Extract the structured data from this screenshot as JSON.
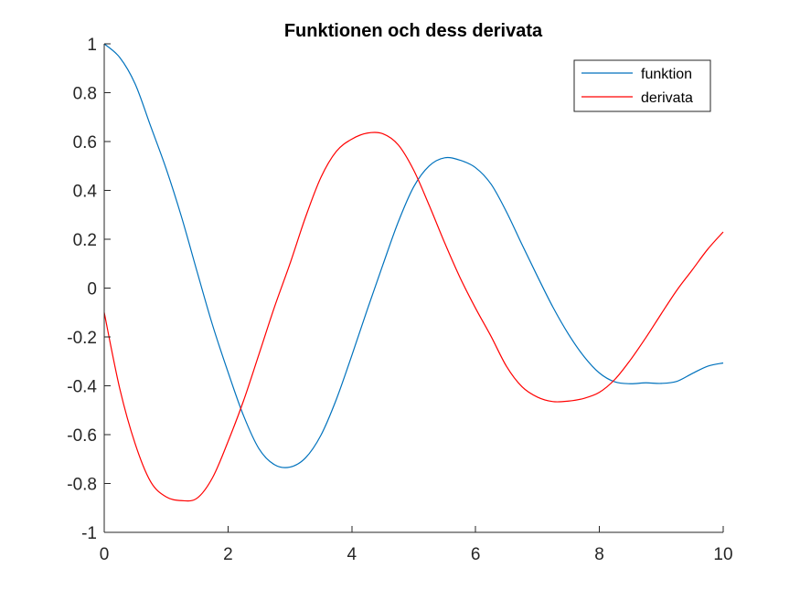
{
  "chart_data": {
    "type": "line",
    "title": "Funktionen och dess derivata",
    "xlabel": "",
    "ylabel": "",
    "xlim": [
      0,
      10
    ],
    "ylim": [
      -1,
      1
    ],
    "xticks": [
      0,
      2,
      4,
      6,
      8,
      10
    ],
    "xtick_labels": [
      "0",
      "2",
      "4",
      "6",
      "8",
      "10"
    ],
    "yticks": [
      -1,
      -0.8,
      -0.6,
      -0.4,
      -0.2,
      0,
      0.2,
      0.4,
      0.6,
      0.8,
      1
    ],
    "ytick_labels": [
      "-1",
      "-0.8",
      "-0.6",
      "-0.4",
      "-0.2",
      "0",
      "0.2",
      "0.4",
      "0.6",
      "0.8",
      "1"
    ],
    "grid": false,
    "legend_position": "top-right",
    "series": [
      {
        "name": "funktion",
        "color": "#0072BD",
        "x": [
          0,
          0.25,
          0.5,
          0.75,
          1,
          1.25,
          1.5,
          1.75,
          2,
          2.25,
          2.5,
          2.75,
          3,
          3.25,
          3.5,
          3.75,
          4,
          4.25,
          4.5,
          4.75,
          5,
          5.25,
          5.5,
          5.75,
          6,
          6.25,
          6.5,
          6.75,
          7,
          7.25,
          7.5,
          7.75,
          8,
          8.25,
          8.5,
          8.75,
          9,
          9.25,
          9.5,
          9.75,
          10
        ],
        "y": [
          1.0,
          0.9444,
          0.8356,
          0.6627,
          0.4889,
          0.2902,
          0.0673,
          -0.1514,
          -0.3438,
          -0.5218,
          -0.6577,
          -0.7229,
          -0.7329,
          -0.6955,
          -0.6028,
          -0.4555,
          -0.2758,
          -0.088,
          0.094,
          0.2705,
          0.4147,
          0.5003,
          0.5335,
          0.5234,
          0.4928,
          0.4254,
          0.3112,
          0.1779,
          0.0474,
          -0.0785,
          -0.1885,
          -0.2798,
          -0.3476,
          -0.384,
          -0.3915,
          -0.3879,
          -0.3902,
          -0.3819,
          -0.3498,
          -0.3197,
          -0.3065
        ]
      },
      {
        "name": "derivata",
        "color": "#FF0000",
        "x": [
          0,
          0.25,
          0.5,
          0.75,
          1,
          1.25,
          1.5,
          1.75,
          2,
          2.25,
          2.5,
          2.75,
          3,
          3.25,
          3.5,
          3.75,
          4,
          4.25,
          4.5,
          4.75,
          5,
          5.25,
          5.5,
          5.75,
          6,
          6.25,
          6.5,
          6.75,
          7,
          7.25,
          7.5,
          7.75,
          8,
          8.25,
          8.5,
          8.75,
          9,
          9.25,
          9.5,
          9.75,
          10
        ],
        "y": [
          -0.1,
          -0.4106,
          -0.6377,
          -0.7928,
          -0.8547,
          -0.8701,
          -0.8601,
          -0.7762,
          -0.6285,
          -0.4617,
          -0.2708,
          -0.0778,
          0.0991,
          0.2888,
          0.4528,
          0.5599,
          0.6099,
          0.6346,
          0.632,
          0.5863,
          0.4826,
          0.3387,
          0.1854,
          0.042,
          -0.0829,
          -0.1979,
          -0.3208,
          -0.404,
          -0.4464,
          -0.4647,
          -0.4626,
          -0.4515,
          -0.4268,
          -0.3739,
          -0.2946,
          -0.2029,
          -0.1051,
          -0.0093,
          0.0744,
          0.1591,
          0.2299
        ]
      }
    ]
  }
}
